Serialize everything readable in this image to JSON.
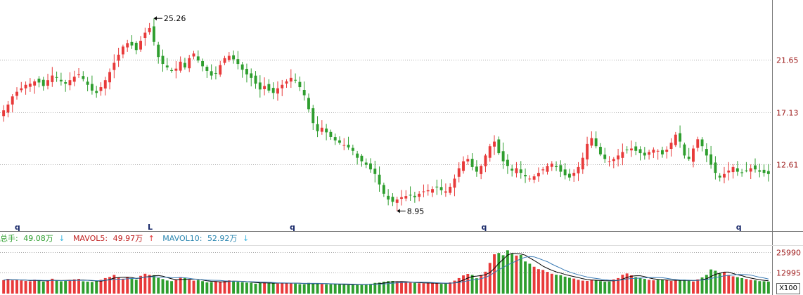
{
  "colors": {
    "up": "#e83a3a",
    "down": "#2e9e2e",
    "grid": "#aaaaaa",
    "axis": "#a02020",
    "ma5": "#000000",
    "ma10": "#3a7bb5"
  },
  "info": {
    "total_label": "总手:",
    "total_value": "49.08万",
    "total_arrow": "↓",
    "mavol5_label": "MAVOL5:",
    "mavol5_value": "49.97万",
    "mavol5_arrow": "↑",
    "mavol10_label": "MAVOL10:",
    "mavol10_value": "52.92万",
    "mavol10_arrow": "↓"
  },
  "unit_label": "X100",
  "chart_data": {
    "type": "candlestick",
    "price_axis_labels": [
      "21.65",
      "17.13",
      "12.61"
    ],
    "price_ylim": [
      7.3,
      26.7
    ],
    "volume_axis_labels": [
      "25990",
      "12995"
    ],
    "volume_ylim": [
      0,
      29000
    ],
    "max_marker": "25.26",
    "min_marker": "8.95",
    "period_markers": [
      "q",
      "L",
      "q",
      "q",
      "q"
    ],
    "closes": [
      17.3,
      17.8,
      18.5,
      18.9,
      19.2,
      19.5,
      19.6,
      19.8,
      19.7,
      19.4,
      19.9,
      20.3,
      20.1,
      19.8,
      19.6,
      19.9,
      20.2,
      20.4,
      20.0,
      19.5,
      19.0,
      18.8,
      19.3,
      19.9,
      20.6,
      21.4,
      22.1,
      22.8,
      23.1,
      22.9,
      22.5,
      23.3,
      24.0,
      24.4,
      23.2,
      21.9,
      21.3,
      21.0,
      20.7,
      20.9,
      21.5,
      21.0,
      21.8,
      22.2,
      21.6,
      21.1,
      20.7,
      20.3,
      20.5,
      21.2,
      21.8,
      22.0,
      21.7,
      21.3,
      20.8,
      20.4,
      20.1,
      19.6,
      19.1,
      19.4,
      19.0,
      18.8,
      19.2,
      19.5,
      19.8,
      20.1,
      19.9,
      19.3,
      18.6,
      17.4,
      16.2,
      15.5,
      15.8,
      15.4,
      15.0,
      14.7,
      14.5,
      14.3,
      14.1,
      13.8,
      13.2,
      12.9,
      12.6,
      12.2,
      11.8,
      10.9,
      10.1,
      9.6,
      9.4,
      9.6,
      9.8,
      9.9,
      10.0,
      9.8,
      10.1,
      10.3,
      10.4,
      10.5,
      10.7,
      10.4,
      10.3,
      10.7,
      11.4,
      12.3,
      12.9,
      13.1,
      12.4,
      12.0,
      12.5,
      13.4,
      14.2,
      14.6,
      13.6,
      12.9,
      12.5,
      12.1,
      12.3,
      11.9,
      11.6,
      11.4,
      11.6,
      11.9,
      12.2,
      12.5,
      12.7,
      12.4,
      12.0,
      11.7,
      11.5,
      11.9,
      12.4,
      13.2,
      14.4,
      14.9,
      14.2,
      13.5,
      13.1,
      12.9,
      13.1,
      13.4,
      13.7,
      13.9,
      14.0,
      13.8,
      13.6,
      13.4,
      13.7,
      13.9,
      13.8,
      13.5,
      13.9,
      14.5,
      15.2,
      14.6,
      13.4,
      13.1,
      14.0,
      14.8,
      14.2,
      13.4,
      12.6,
      11.9,
      11.5,
      11.8,
      12.1,
      12.4,
      12.0,
      11.9,
      12.1,
      12.3,
      12.2,
      12.0,
      11.9,
      11.8
    ],
    "volumes": [
      8400,
      9200,
      8300,
      8600,
      8200,
      7900,
      7700,
      8700,
      8200,
      7500,
      8100,
      9300,
      8200,
      7700,
      7900,
      8500,
      8900,
      9200,
      7700,
      7500,
      7300,
      8100,
      8600,
      9700,
      10400,
      11700,
      9900,
      9300,
      10200,
      9200,
      8700,
      11100,
      12400,
      11700,
      11500,
      9800,
      9100,
      8200,
      7800,
      8500,
      10300,
      9700,
      8600,
      8100,
      8400,
      7800,
      7000,
      7200,
      7600,
      7300,
      7900,
      8300,
      7800,
      7400,
      7100,
      6900,
      6800,
      6200,
      6800,
      6900,
      6500,
      6400,
      6300,
      6800,
      6700,
      6600,
      6300,
      5900,
      5800,
      6700,
      6500,
      6400,
      6000,
      5800,
      5800,
      5900,
      5700,
      5600,
      5400,
      5600,
      5500,
      5700,
      5900,
      6100,
      6700,
      6900,
      7400,
      7800,
      7900,
      7300,
      7200,
      6900,
      6900,
      6700,
      6500,
      6400,
      6600,
      6700,
      6400,
      6100,
      6300,
      7000,
      8100,
      9700,
      11400,
      12300,
      11700,
      9600,
      11600,
      13700,
      19200,
      24600,
      25400,
      24000,
      27100,
      24900,
      23800,
      24200,
      20100,
      18700,
      16800,
      15300,
      14800,
      13600,
      12400,
      11800,
      11500,
      10600,
      9900,
      9400,
      8600,
      8100,
      7900,
      8700,
      8400,
      7800,
      7400,
      7600,
      8900,
      9700,
      11800,
      12600,
      11400,
      10300,
      9700,
      9200,
      8600,
      8300,
      8600,
      8800,
      8400,
      7900,
      8100,
      8300,
      8700,
      8100,
      7600,
      8900,
      10100,
      11700,
      15100,
      14300,
      12600,
      13500,
      11700,
      10800,
      10300,
      9700,
      9100,
      8600,
      8300,
      7800,
      7700,
      7500,
      7000,
      6800,
      6700,
      6500,
      6400,
      6200,
      6100
    ]
  }
}
